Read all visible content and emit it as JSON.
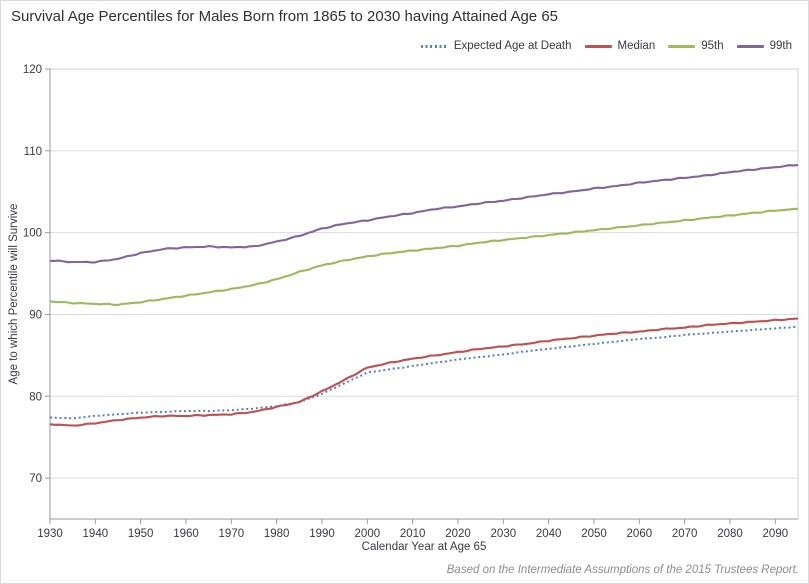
{
  "title": "Survival Age Percentiles for Males Born from 1865 to 2030 having Attained Age 65",
  "footer": "Based on the Intermediate Assumptions of the 2015 Trustees Report.",
  "style_colors": {
    "title_text": "#30303c",
    "axis_text": "#3a3a47",
    "grid_line": "#dcdce0",
    "plot_border": "#cfcfd6",
    "axis_line": "#9a9aa2",
    "footer_text": "#8c8c8c",
    "canvas_border": "#d9d9de"
  },
  "chart_data": {
    "type": "line",
    "title": "Survival Age Percentiles for Males Born from 1865 to 2030 having Attained Age 65",
    "xlabel": "Calendar Year at Age 65",
    "ylabel": "Age to which Percentile will Survive",
    "xlim": [
      1930,
      2095
    ],
    "ylim": [
      65,
      120
    ],
    "x_ticks": [
      1930,
      1940,
      1950,
      1960,
      1970,
      1980,
      1990,
      2000,
      2010,
      2020,
      2030,
      2040,
      2050,
      2060,
      2070,
      2080,
      2090
    ],
    "y_ticks": [
      70,
      80,
      90,
      100,
      110,
      120
    ],
    "grid": "horizontal",
    "legend_position": "top-right",
    "x": [
      1930,
      1935,
      1940,
      1945,
      1950,
      1955,
      1960,
      1965,
      1970,
      1975,
      1980,
      1985,
      1990,
      1995,
      2000,
      2005,
      2010,
      2015,
      2020,
      2025,
      2030,
      2035,
      2040,
      2045,
      2050,
      2055,
      2060,
      2065,
      2070,
      2075,
      2080,
      2085,
      2090,
      2095
    ],
    "series": [
      {
        "name": "Expected Age at Death",
        "color": "#4F81BD",
        "style": "dotted",
        "values": [
          77.4,
          77.3,
          77.6,
          77.8,
          78.0,
          78.1,
          78.2,
          78.2,
          78.3,
          78.5,
          78.8,
          79.3,
          80.3,
          81.6,
          82.9,
          83.3,
          83.7,
          84.1,
          84.5,
          84.8,
          85.1,
          85.5,
          85.8,
          86.1,
          86.4,
          86.7,
          87.0,
          87.2,
          87.5,
          87.7,
          87.9,
          88.1,
          88.3,
          88.5
        ]
      },
      {
        "name": "Median",
        "color": "#C0504D",
        "style": "solid",
        "values": [
          76.6,
          76.4,
          76.7,
          77.1,
          77.4,
          77.6,
          77.6,
          77.7,
          77.8,
          78.1,
          78.7,
          79.3,
          80.6,
          82.0,
          83.5,
          84.1,
          84.6,
          85.0,
          85.4,
          85.8,
          86.1,
          86.4,
          86.8,
          87.1,
          87.4,
          87.7,
          87.9,
          88.2,
          88.4,
          88.7,
          88.9,
          89.1,
          89.3,
          89.5
        ]
      },
      {
        "name": "95th",
        "color": "#9BBB59",
        "style": "solid",
        "values": [
          91.6,
          91.4,
          91.3,
          91.2,
          91.5,
          91.9,
          92.3,
          92.7,
          93.1,
          93.6,
          94.3,
          95.2,
          96.0,
          96.6,
          97.1,
          97.5,
          97.8,
          98.1,
          98.4,
          98.8,
          99.1,
          99.4,
          99.7,
          100.0,
          100.3,
          100.6,
          100.9,
          101.2,
          101.5,
          101.8,
          102.1,
          102.4,
          102.7,
          102.9
        ]
      },
      {
        "name": "99th",
        "color": "#8064A2",
        "style": "solid",
        "values": [
          96.6,
          96.4,
          96.4,
          96.8,
          97.5,
          98.0,
          98.2,
          98.3,
          98.2,
          98.3,
          98.9,
          99.6,
          100.5,
          101.1,
          101.5,
          102.0,
          102.4,
          102.9,
          103.2,
          103.6,
          103.9,
          104.3,
          104.7,
          105.0,
          105.4,
          105.7,
          106.1,
          106.4,
          106.7,
          107.0,
          107.4,
          107.7,
          108.0,
          108.3
        ]
      }
    ]
  }
}
